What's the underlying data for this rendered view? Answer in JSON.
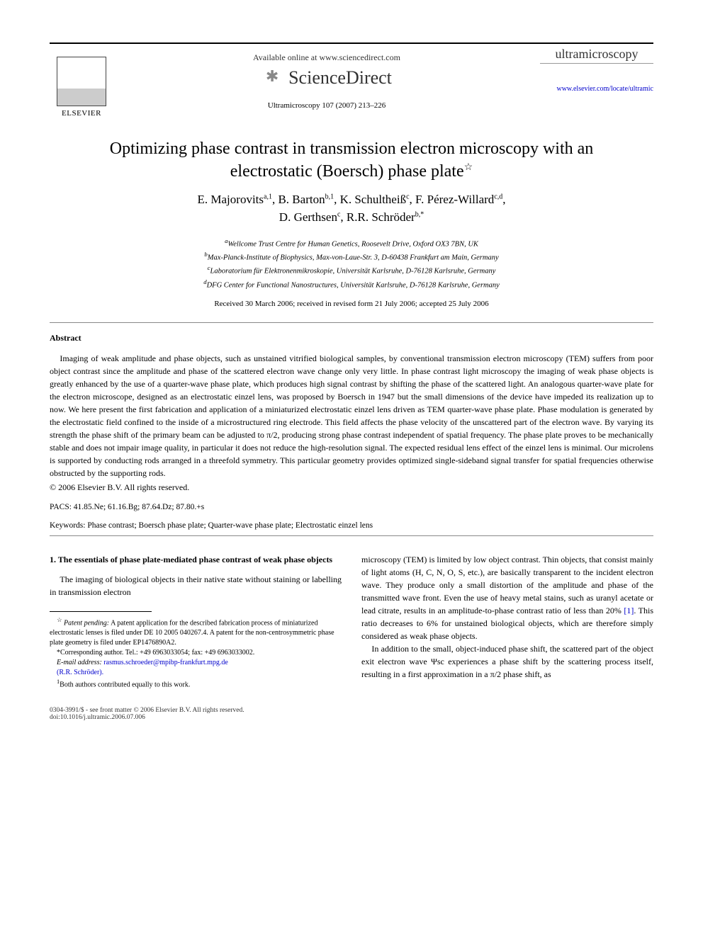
{
  "header": {
    "available_text": "Available online at www.sciencedirect.com",
    "brand": "ScienceDirect",
    "citation": "Ultramicroscopy 107 (2007) 213–226",
    "elsevier": "ELSEVIER",
    "journal_name": "ultramicroscopy",
    "journal_url": "www.elsevier.com/locate/ultramic"
  },
  "title": "Optimizing phase contrast in transmission electron microscopy with an electrostatic (Boersch) phase plate",
  "title_star": "☆",
  "authors_html": "E. Majorovits|a,1|, B. Barton|b,1|, K. Schultheiß|c|, F. Pérez-Willard|c,d|, D. Gerthsen|c|, R.R. Schröder|b,*|",
  "authors": [
    {
      "name": "E. Majorovits",
      "sup": "a,1"
    },
    {
      "name": "B. Barton",
      "sup": "b,1"
    },
    {
      "name": "K. Schultheiß",
      "sup": "c"
    },
    {
      "name": "F. Pérez-Willard",
      "sup": "c,d"
    },
    {
      "name": "D. Gerthsen",
      "sup": "c"
    },
    {
      "name": "R.R. Schröder",
      "sup": "b,*"
    }
  ],
  "affiliations": {
    "a": "Wellcome Trust Centre for Human Genetics, Roosevelt Drive, Oxford OX3 7BN, UK",
    "b": "Max-Planck-Institute of Biophysics, Max-von-Laue-Str. 3, D-60438 Frankfurt am Main, Germany",
    "c": "Laboratorium für Elektronenmikroskopie, Universität Karlsruhe, D-76128 Karlsruhe, Germany",
    "d": "DFG Center for Functional Nanostructures, Universität Karlsruhe, D-76128 Karlsruhe, Germany"
  },
  "dates": "Received 30 March 2006; received in revised form 21 July 2006; accepted 25 July 2006",
  "abstract": {
    "heading": "Abstract",
    "body": "Imaging of weak amplitude and phase objects, such as unstained vitrified biological samples, by conventional transmission electron microscopy (TEM) suffers from poor object contrast since the amplitude and phase of the scattered electron wave change only very little. In phase contrast light microscopy the imaging of weak phase objects is greatly enhanced by the use of a quarter-wave phase plate, which produces high signal contrast by shifting the phase of the scattered light. An analogous quarter-wave plate for the electron microscope, designed as an electrostatic einzel lens, was proposed by Boersch in 1947 but the small dimensions of the device have impeded its realization up to now. We here present the first fabrication and application of a miniaturized electrostatic einzel lens driven as TEM quarter-wave phase plate. Phase modulation is generated by the electrostatic field confined to the inside of a microstructured ring electrode. This field affects the phase velocity of the unscattered part of the electron wave. By varying its strength the phase shift of the primary beam can be adjusted to π/2, producing strong phase contrast independent of spatial frequency. The phase plate proves to be mechanically stable and does not impair image quality, in particular it does not reduce the high-resolution signal. The expected residual lens effect of the einzel lens is minimal. Our microlens is supported by conducting rods arranged in a threefold symmetry. This particular geometry provides optimized single-sideband signal transfer for spatial frequencies otherwise obstructed by the supporting rods.",
    "copyright": "© 2006 Elsevier B.V. All rights reserved."
  },
  "pacs_label": "PACS:",
  "pacs": "41.85.Ne; 61.16.Bg; 87.64.Dz; 87.80.+s",
  "keywords_label": "Keywords:",
  "keywords": "Phase contrast; Boersch phase plate; Quarter-wave phase plate; Electrostatic einzel lens",
  "section1": {
    "heading": "1. The essentials of phase plate-mediated phase contrast of weak phase objects",
    "para1": "The imaging of biological objects in their native state without staining or labelling in transmission electron",
    "para1_cont": "microscopy (TEM) is limited by low object contrast. Thin objects, that consist mainly of light atoms (H, C, N, O, S, etc.), are basically transparent to the incident electron wave. They produce only a small distortion of the amplitude and phase of the transmitted wave front. Even the use of heavy metal stains, such as uranyl acetate or lead citrate, results in an amplitude-to-phase contrast ratio of less than 20% ",
    "ref1": "[1]",
    "para1_tail": ". This ratio decreases to 6% for unstained biological objects, which are therefore simply considered as weak phase objects.",
    "para2": "In addition to the small, object-induced phase shift, the scattered part of the object exit electron wave Ψsc experiences a phase shift by the scattering process itself, resulting in a first approximation in a π/2 phase shift, as"
  },
  "footnotes": {
    "patent_label": "☆",
    "patent_heading": "Patent pending:",
    "patent_text": " A patent application for the described fabrication process of miniaturized electrostatic lenses is filed under DE 10 2005 040267.4. A patent for the non-centrosymmetric phase plate geometry is filed under EP1476890A2.",
    "corr_label": "*",
    "corr_text": "Corresponding author. Tel.: +49 6963033054; fax: +49 6963033002.",
    "email_label": "E-mail address:",
    "email": "rasmus.schroeder@mpibp-frankfurt.mpg.de",
    "email_name": "(R.R. Schröder).",
    "equal_label": "1",
    "equal_text": "Both authors contributed equally to this work."
  },
  "footer": {
    "line1": "0304-3991/$ - see front matter © 2006 Elsevier B.V. All rights reserved.",
    "line2": "doi:10.1016/j.ultramic.2006.07.006"
  },
  "style": {
    "page_bg": "#ffffff",
    "text_color": "#000000",
    "link_color": "#0000cc",
    "title_fontsize": 24,
    "author_fontsize": 17,
    "body_fontsize": 12,
    "footnote_fontsize": 10
  }
}
